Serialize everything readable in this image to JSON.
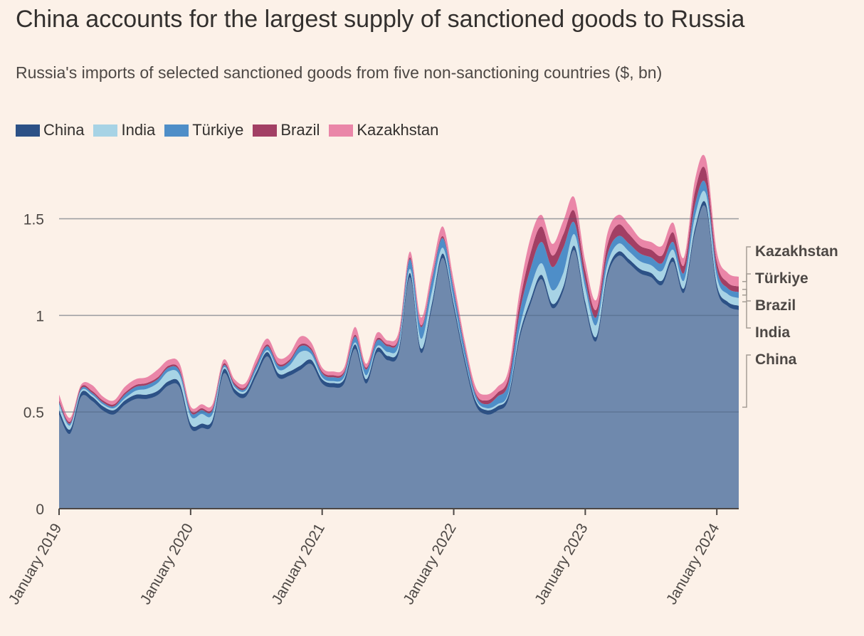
{
  "chart_data": {
    "type": "area",
    "stacked": true,
    "title": "China accounts for the largest supply of sanctioned goods to Russia",
    "subtitle": "Russia's imports of selected sanctioned goods from five non-sanctioning countries ($, bn)",
    "xlabel": "",
    "ylabel": "",
    "ylim": [
      0,
      1.8
    ],
    "yticks": [
      {
        "value": 0,
        "label": "0"
      },
      {
        "value": 0.5,
        "label": "0.5"
      },
      {
        "value": 1,
        "label": "1"
      },
      {
        "value": 1.5,
        "label": "1.5"
      }
    ],
    "x_start": "2019-01",
    "x_end": "2024-02",
    "xticks": [
      {
        "month_index": 0,
        "label": "January 2019"
      },
      {
        "month_index": 12,
        "label": "January 2020"
      },
      {
        "month_index": 24,
        "label": "January 2021"
      },
      {
        "month_index": 36,
        "label": "January 2022"
      },
      {
        "month_index": 48,
        "label": "January 2023"
      },
      {
        "month_index": 60,
        "label": "January 2024"
      }
    ],
    "legend": [
      {
        "name": "China",
        "color": "#2c5186"
      },
      {
        "name": "India",
        "color": "#a7d3e5"
      },
      {
        "name": "Türkiye",
        "color": "#4e8ec8"
      },
      {
        "name": "Brazil",
        "color": "#a23f64"
      },
      {
        "name": "Kazakhstan",
        "color": "#ea86a8"
      }
    ],
    "end_labels": [
      "Kazakhstan",
      "Türkiye",
      "Brazil",
      "India",
      "China"
    ],
    "series": [
      {
        "name": "China",
        "color": "#2c5186",
        "values": [
          0.51,
          0.41,
          0.6,
          0.58,
          0.53,
          0.51,
          0.56,
          0.59,
          0.59,
          0.61,
          0.66,
          0.65,
          0.44,
          0.44,
          0.46,
          0.72,
          0.62,
          0.6,
          0.71,
          0.81,
          0.7,
          0.71,
          0.74,
          0.77,
          0.67,
          0.65,
          0.67,
          0.85,
          0.67,
          0.83,
          0.79,
          0.83,
          1.22,
          0.83,
          1.06,
          1.32,
          1.06,
          0.78,
          0.56,
          0.51,
          0.53,
          0.59,
          0.9,
          1.08,
          1.21,
          1.06,
          1.15,
          1.36,
          1.07,
          0.89,
          1.22,
          1.33,
          1.29,
          1.24,
          1.22,
          1.18,
          1.3,
          1.14,
          1.45,
          1.58,
          1.16,
          1.07,
          1.05
        ]
      },
      {
        "name": "India",
        "color": "#a7d3e5",
        "values": [
          0.03,
          0.02,
          0.01,
          0.01,
          0.01,
          0.01,
          0.01,
          0.02,
          0.03,
          0.04,
          0.05,
          0.04,
          0.04,
          0.05,
          0.03,
          0.01,
          0.01,
          0.01,
          0.01,
          0.01,
          0.02,
          0.03,
          0.07,
          0.03,
          0.01,
          0.01,
          0.01,
          0.01,
          0.02,
          0.01,
          0.02,
          0.02,
          0.02,
          0.05,
          0.06,
          0.03,
          0.02,
          0.01,
          0.01,
          0.01,
          0.01,
          0.01,
          0.03,
          0.06,
          0.06,
          0.07,
          0.07,
          0.06,
          0.07,
          0.06,
          0.04,
          0.04,
          0.04,
          0.04,
          0.04,
          0.05,
          0.04,
          0.04,
          0.06,
          0.05,
          0.04,
          0.04,
          0.04
        ]
      },
      {
        "name": "Türkiye",
        "color": "#4e8ec8",
        "values": [
          0.01,
          0.01,
          0.01,
          0.01,
          0.01,
          0.01,
          0.02,
          0.02,
          0.02,
          0.02,
          0.02,
          0.02,
          0.02,
          0.02,
          0.02,
          0.01,
          0.01,
          0.01,
          0.02,
          0.02,
          0.02,
          0.02,
          0.03,
          0.02,
          0.02,
          0.02,
          0.02,
          0.03,
          0.03,
          0.03,
          0.03,
          0.03,
          0.05,
          0.06,
          0.06,
          0.05,
          0.05,
          0.04,
          0.02,
          0.02,
          0.04,
          0.05,
          0.08,
          0.1,
          0.11,
          0.12,
          0.13,
          0.06,
          0.04,
          0.04,
          0.05,
          0.04,
          0.04,
          0.04,
          0.04,
          0.04,
          0.04,
          0.04,
          0.06,
          0.05,
          0.04,
          0.03,
          0.03
        ]
      },
      {
        "name": "Brazil",
        "color": "#a23f64",
        "values": [
          0.01,
          0.01,
          0.01,
          0.01,
          0.01,
          0.01,
          0.01,
          0.01,
          0.01,
          0.01,
          0.01,
          0.01,
          0.01,
          0.01,
          0.01,
          0.01,
          0.01,
          0.01,
          0.01,
          0.01,
          0.01,
          0.01,
          0.01,
          0.01,
          0.01,
          0.01,
          0.01,
          0.01,
          0.01,
          0.01,
          0.01,
          0.01,
          0.01,
          0.01,
          0.01,
          0.01,
          0.01,
          0.01,
          0.01,
          0.02,
          0.02,
          0.03,
          0.05,
          0.08,
          0.08,
          0.06,
          0.07,
          0.06,
          0.05,
          0.04,
          0.05,
          0.06,
          0.05,
          0.04,
          0.04,
          0.04,
          0.05,
          0.04,
          0.07,
          0.07,
          0.04,
          0.03,
          0.03
        ]
      },
      {
        "name": "Kazakhstan",
        "color": "#ea86a8",
        "values": [
          0.03,
          0.02,
          0.01,
          0.03,
          0.02,
          0.02,
          0.03,
          0.03,
          0.03,
          0.04,
          0.03,
          0.03,
          0.02,
          0.02,
          0.02,
          0.02,
          0.02,
          0.02,
          0.03,
          0.03,
          0.03,
          0.03,
          0.04,
          0.03,
          0.02,
          0.02,
          0.02,
          0.04,
          0.02,
          0.03,
          0.02,
          0.03,
          0.03,
          0.04,
          0.04,
          0.05,
          0.04,
          0.03,
          0.03,
          0.03,
          0.03,
          0.04,
          0.06,
          0.08,
          0.06,
          0.06,
          0.07,
          0.07,
          0.05,
          0.05,
          0.06,
          0.05,
          0.05,
          0.04,
          0.04,
          0.05,
          0.05,
          0.04,
          0.06,
          0.06,
          0.05,
          0.05,
          0.05
        ]
      }
    ]
  }
}
